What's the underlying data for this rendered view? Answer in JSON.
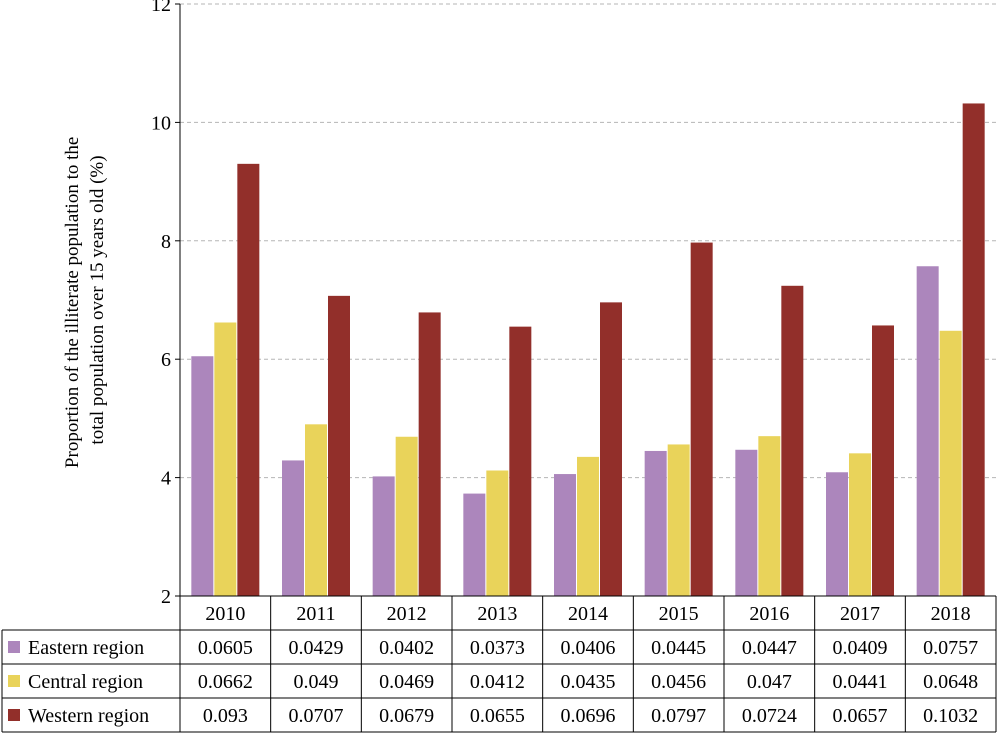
{
  "chart_data": {
    "type": "bar",
    "title": "",
    "xlabel": "",
    "ylabel": "Proportion of the illiterate population to the total population over 15 years old (%)",
    "ylabel_lines": [
      "Proportion of the illiterate population to the",
      "total population over 15 years old (%)"
    ],
    "ylim": [
      2,
      12
    ],
    "yticks": [
      "2",
      "4",
      "6",
      "8",
      "10",
      "12"
    ],
    "grid": true,
    "legend": "data-table rows below the plot",
    "categories": [
      "2010",
      "2011",
      "2012",
      "2013",
      "2014",
      "2015",
      "2016",
      "2017",
      "2018"
    ],
    "series": [
      {
        "name": "Eastern region",
        "color": "#AC86BC",
        "values": [
          6.05,
          4.29,
          4.02,
          3.73,
          4.06,
          4.45,
          4.47,
          4.09,
          7.57
        ],
        "table_values": [
          "0.0605",
          "0.0429",
          "0.0402",
          "0.0373",
          "0.0406",
          "0.0445",
          "0.0447",
          "0.0409",
          "0.0757"
        ]
      },
      {
        "name": "Central region",
        "color": "#E9D35A",
        "values": [
          6.62,
          4.9,
          4.69,
          4.12,
          4.35,
          4.56,
          4.7,
          4.41,
          6.48
        ],
        "table_values": [
          "0.0662",
          "0.049",
          "0.0469",
          "0.0412",
          "0.0435",
          "0.0456",
          "0.047",
          "0.0441",
          "0.0648"
        ]
      },
      {
        "name": "Western region",
        "color": "#922F2A",
        "values": [
          9.3,
          7.07,
          6.79,
          6.55,
          6.96,
          7.97,
          7.24,
          6.57,
          10.32
        ],
        "table_values": [
          "0.093",
          "0.0707",
          "0.0679",
          "0.0655",
          "0.0696",
          "0.0797",
          "0.0724",
          "0.0657",
          "0.1032"
        ]
      }
    ]
  }
}
